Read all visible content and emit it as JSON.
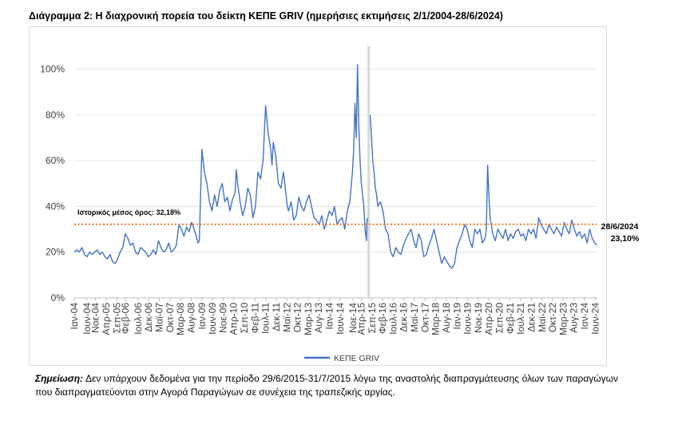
{
  "title": "Διάγραμμα 2: Η διαχρονική πορεία του δείκτη ΚΕΠΕ GRIV (ημερήσιες εκτιμήσεις 2/1/2004-28/6/2024)",
  "note": {
    "label": "Σημείωση:",
    "text": " Δεν υπάρχουν δεδομένα για την περίοδο 29/6/2015-31/7/2015 λόγω της αναστολής διαπραγμάτευσης όλων των παραγώγων που διαπραγματεύονται στην Αγορά Παραγώγων σε συνέχεια της τραπεζικής αργίας."
  },
  "chart_data": {
    "type": "line",
    "title": "",
    "xlabel": "",
    "ylabel": "",
    "ylim": [
      0,
      110
    ],
    "yticks": [
      0,
      20,
      40,
      60,
      80,
      100
    ],
    "ytick_labels": [
      "0%",
      "20%",
      "40%",
      "60%",
      "80%",
      "100%"
    ],
    "xlim": [
      2004.0,
      2024.5
    ],
    "xtick_positions": [
      2004.0,
      2004.5,
      2004.8333,
      2005.25,
      2005.6667,
      2006.0,
      2006.5,
      2006.9167,
      2007.3333,
      2007.75,
      2008.1667,
      2008.5833,
      2009.0,
      2009.4167,
      2009.8333,
      2010.25,
      2010.6667,
      2011.0833,
      2011.5,
      2011.9167,
      2012.3333,
      2012.75,
      2013.1667,
      2013.5833,
      2014.0,
      2014.4167,
      2014.9167,
      2015.25,
      2015.6667,
      2016.0833,
      2016.5,
      2016.9167,
      2017.3333,
      2017.75,
      2018.1667,
      2018.5833,
      2019.0,
      2019.4167,
      2019.8333,
      2020.25,
      2020.6667,
      2021.0833,
      2021.5,
      2021.9167,
      2022.3333,
      2022.75,
      2023.1667,
      2023.5833,
      2024.0,
      2024.4167
    ],
    "xtick_labels": [
      "Ιαν-04",
      "Ιουν-04",
      "Νοε-04",
      "Απρ-05",
      "Σεπ-05",
      "Φεβ-06",
      "Ιουλ-06",
      "Δεκ-06",
      "Μαϊ-07",
      "Οκτ-07",
      "Μαρ-08",
      "Αυγ-08",
      "Ιαν-09",
      "Ιουν-09",
      "Νοε-09",
      "Απρ-10",
      "Σεπ-10",
      "Φεβ-11",
      "Ιουλ-11",
      "Δεκ-11",
      "Μαϊ-12",
      "Οκτ-12",
      "Μαρ-13",
      "Αυγ-13",
      "Ιαν-14",
      "Ιουν-14",
      "Νοε-14",
      "Απρ-15",
      "Σεπ-15",
      "Φεβ-16",
      "Ιουλ-16",
      "Δεκ-16",
      "Μαϊ-17",
      "Οκτ-17",
      "Μαρ-18",
      "Αυγ-18",
      "Ιαν-19",
      "Ιουν-19",
      "Νοε-19",
      "Απρ-20",
      "Σεπ-20",
      "Φεβ-21",
      "Ιουλ-21",
      "Δεκ-21",
      "Μαϊ-22",
      "Οκτ-22",
      "Μαρ-23",
      "Αυγ-23",
      "Ιαν-24",
      "Ιουν-24"
    ],
    "grid": true,
    "legend": "bottom",
    "series": [
      {
        "name": "ΚΕΠΕ GRIV",
        "color": "#4472c4",
        "x": [
          2004.0,
          2004.1,
          2004.2,
          2004.3,
          2004.4,
          2004.5,
          2004.6,
          2004.7,
          2004.8,
          2004.9,
          2005.0,
          2005.1,
          2005.2,
          2005.3,
          2005.4,
          2005.5,
          2005.6,
          2005.7,
          2005.8,
          2005.9,
          2006.0,
          2006.1,
          2006.2,
          2006.3,
          2006.4,
          2006.5,
          2006.6,
          2006.7,
          2006.8,
          2006.9,
          2007.0,
          2007.1,
          2007.2,
          2007.3,
          2007.4,
          2007.5,
          2007.6,
          2007.7,
          2007.8,
          2007.9,
          2008.0,
          2008.1,
          2008.2,
          2008.3,
          2008.4,
          2008.5,
          2008.6,
          2008.7,
          2008.8,
          2008.85,
          2008.9,
          2009.0,
          2009.1,
          2009.2,
          2009.3,
          2009.4,
          2009.5,
          2009.6,
          2009.7,
          2009.8,
          2009.9,
          2010.0,
          2010.1,
          2010.2,
          2010.3,
          2010.35,
          2010.4,
          2010.5,
          2010.6,
          2010.7,
          2010.8,
          2010.9,
          2011.0,
          2011.1,
          2011.2,
          2011.3,
          2011.4,
          2011.5,
          2011.6,
          2011.7,
          2011.75,
          2011.8,
          2011.9,
          2012.0,
          2012.1,
          2012.2,
          2012.3,
          2012.35,
          2012.4,
          2012.5,
          2012.6,
          2012.7,
          2012.8,
          2012.9,
          2013.0,
          2013.1,
          2013.2,
          2013.3,
          2013.4,
          2013.5,
          2013.6,
          2013.7,
          2013.8,
          2013.9,
          2014.0,
          2014.1,
          2014.2,
          2014.3,
          2014.4,
          2014.5,
          2014.6,
          2014.7,
          2014.8,
          2014.9,
          2014.95,
          2015.0,
          2015.05,
          2015.1,
          2015.15,
          2015.2,
          2015.25,
          2015.3,
          2015.35,
          2015.4,
          2015.45,
          2015.48
        ],
        "values": [
          20,
          21,
          20,
          22,
          19,
          18,
          20,
          19,
          20,
          21,
          19,
          20,
          18,
          17,
          19,
          16,
          15,
          17,
          20,
          22,
          28,
          26,
          23,
          24,
          20,
          19,
          22,
          21,
          20,
          18,
          19,
          21,
          19,
          25,
          22,
          20,
          21,
          24,
          20,
          21,
          23,
          32,
          30,
          27,
          31,
          29,
          33,
          30,
          26,
          24,
          25,
          65,
          55,
          50,
          42,
          38,
          45,
          40,
          47,
          50,
          42,
          44,
          38,
          43,
          46,
          56,
          50,
          42,
          36,
          40,
          48,
          45,
          35,
          40,
          55,
          52,
          60,
          84,
          72,
          65,
          58,
          68,
          62,
          50,
          48,
          55,
          45,
          40,
          38,
          42,
          34,
          36,
          44,
          40,
          38,
          42,
          45,
          40,
          35,
          34,
          32,
          36,
          30,
          34,
          38,
          36,
          40,
          32,
          34,
          35,
          30,
          38,
          42,
          55,
          65,
          85,
          70,
          102,
          75,
          60,
          50,
          45,
          40,
          30,
          25,
          35
        ]
      },
      {
        "name": "ΚΕΠΕ GRIV",
        "color": "#4472c4",
        "x": [
          2015.6,
          2015.65,
          2015.7,
          2015.75,
          2015.8,
          2015.85,
          2015.9,
          2016.0,
          2016.1,
          2016.2,
          2016.3,
          2016.4,
          2016.5,
          2016.6,
          2016.7,
          2016.8,
          2016.9,
          2017.0,
          2017.1,
          2017.2,
          2017.3,
          2017.4,
          2017.5,
          2017.6,
          2017.7,
          2017.8,
          2017.9,
          2018.0,
          2018.1,
          2018.2,
          2018.3,
          2018.4,
          2018.5,
          2018.6,
          2018.7,
          2018.8,
          2018.9,
          2019.0,
          2019.1,
          2019.2,
          2019.3,
          2019.4,
          2019.5,
          2019.6,
          2019.7,
          2019.8,
          2019.9,
          2020.0,
          2020.1,
          2020.15,
          2020.2,
          2020.25,
          2020.3,
          2020.4,
          2020.5,
          2020.6,
          2020.7,
          2020.8,
          2020.9,
          2021.0,
          2021.1,
          2021.2,
          2021.3,
          2021.4,
          2021.5,
          2021.6,
          2021.7,
          2021.8,
          2021.9,
          2022.0,
          2022.1,
          2022.2,
          2022.3,
          2022.4,
          2022.5,
          2022.6,
          2022.7,
          2022.8,
          2022.9,
          2023.0,
          2023.1,
          2023.2,
          2023.3,
          2023.4,
          2023.5,
          2023.6,
          2023.7,
          2023.8,
          2023.9,
          2024.0,
          2024.1,
          2024.2,
          2024.3,
          2024.4,
          2024.49
        ],
        "values": [
          80,
          70,
          60,
          55,
          48,
          45,
          40,
          42,
          38,
          30,
          28,
          20,
          18,
          22,
          20,
          19,
          23,
          26,
          28,
          30,
          25,
          22,
          28,
          25,
          18,
          19,
          23,
          26,
          30,
          25,
          20,
          15,
          18,
          16,
          14,
          13,
          15,
          22,
          25,
          28,
          32,
          30,
          25,
          22,
          30,
          28,
          30,
          24,
          26,
          30,
          58,
          45,
          35,
          28,
          25,
          30,
          28,
          26,
          30,
          25,
          28,
          26,
          29,
          30,
          27,
          28,
          25,
          30,
          28,
          30,
          26,
          35,
          32,
          30,
          28,
          32,
          30,
          28,
          31,
          29,
          27,
          33,
          30,
          28,
          34,
          30,
          27,
          29,
          26,
          28,
          24,
          30,
          26,
          24,
          23.1
        ]
      }
    ],
    "gap_band": [
      2015.49,
      2015.59
    ],
    "reference_line": {
      "value": 32.18,
      "label": "Ιστορικός μέσος όρος: 32,18%",
      "color": "#ed7d31"
    },
    "end_annotation": {
      "date": "28/6/2024",
      "value_label": "23,10%"
    }
  }
}
